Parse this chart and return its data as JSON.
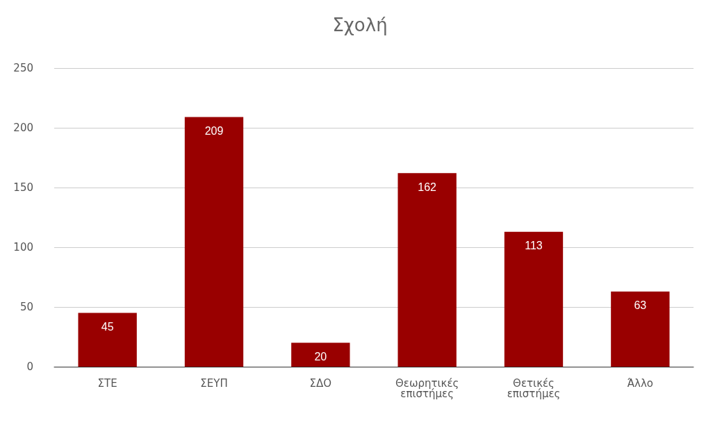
{
  "chart_data": {
    "type": "bar",
    "title": "Σχολή",
    "categories": [
      "ΣΤΕ",
      "ΣΕΥΠ",
      "ΣΔΟ",
      "Θεωρητικές επιστήμες",
      "Θετικές επιστήμες",
      "Άλλο"
    ],
    "values": [
      45,
      209,
      20,
      162,
      113,
      63
    ],
    "color": "#990000",
    "ylim": [
      0,
      250
    ],
    "yticks": [
      0,
      50,
      100,
      150,
      200,
      250
    ],
    "grid": "y",
    "data_labels": true
  }
}
